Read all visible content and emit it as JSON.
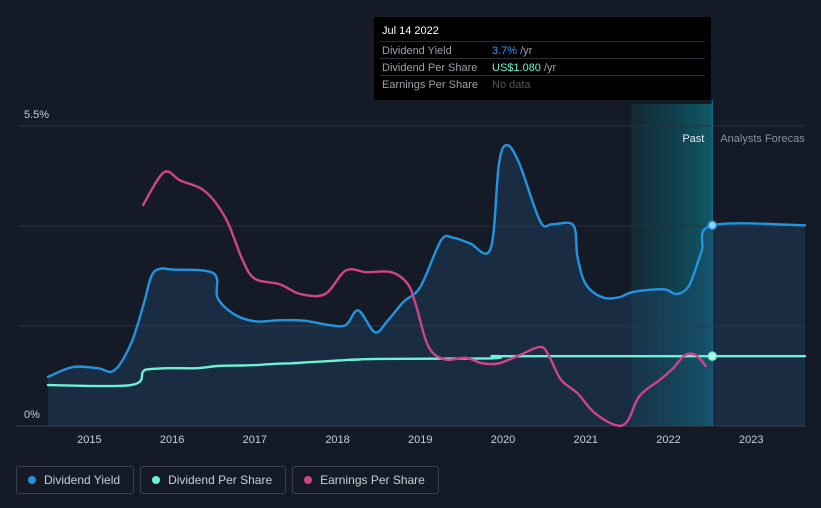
{
  "tooltip": {
    "date": "Jul 14 2022",
    "rows": [
      {
        "label": "Dividend Yield",
        "value": "3.7%",
        "unit": "/yr"
      },
      {
        "label": "Dividend Per Share",
        "value": "US$1.080",
        "unit": "/yr"
      },
      {
        "label": "Earnings Per Share",
        "value": "No data",
        "unit": ""
      }
    ]
  },
  "labels": {
    "past": "Past",
    "forecast": "Analysts Forecas"
  },
  "legend": [
    {
      "label": "Dividend Yield",
      "color": "#2394df"
    },
    {
      "label": "Dividend Per Share",
      "color": "#6ff2d4"
    },
    {
      "label": "Earnings Per Share",
      "color": "#d0448b"
    }
  ],
  "chart_data": {
    "type": "line",
    "ylim": [
      0,
      5.5
    ],
    "y_ticks": [
      "5.5%",
      "0%"
    ],
    "x_ticks": [
      "2015",
      "2016",
      "2017",
      "2018",
      "2019",
      "2020",
      "2021",
      "2022",
      "2023"
    ],
    "xlim": [
      2014.5,
      2023.65
    ],
    "forecast_start": 2021.55,
    "past_marker": 2022.53,
    "series": [
      {
        "name": "Dividend Yield",
        "color": "#2394df",
        "filled": true,
        "points": [
          [
            2014.5,
            0.9
          ],
          [
            2014.8,
            1.08
          ],
          [
            2015.1,
            1.06
          ],
          [
            2015.3,
            1.02
          ],
          [
            2015.5,
            1.5
          ],
          [
            2015.65,
            2.2
          ],
          [
            2015.75,
            2.75
          ],
          [
            2015.85,
            2.88
          ],
          [
            2016.0,
            2.87
          ],
          [
            2016.5,
            2.8
          ],
          [
            2016.55,
            2.35
          ],
          [
            2016.75,
            2.05
          ],
          [
            2017.0,
            1.92
          ],
          [
            2017.3,
            1.94
          ],
          [
            2017.6,
            1.93
          ],
          [
            2017.9,
            1.85
          ],
          [
            2018.1,
            1.85
          ],
          [
            2018.25,
            2.12
          ],
          [
            2018.45,
            1.72
          ],
          [
            2018.6,
            1.92
          ],
          [
            2018.8,
            2.28
          ],
          [
            2019.0,
            2.55
          ],
          [
            2019.25,
            3.4
          ],
          [
            2019.4,
            3.45
          ],
          [
            2019.6,
            3.35
          ],
          [
            2019.85,
            3.25
          ],
          [
            2019.95,
            4.8
          ],
          [
            2020.05,
            5.15
          ],
          [
            2020.2,
            4.8
          ],
          [
            2020.45,
            3.75
          ],
          [
            2020.6,
            3.7
          ],
          [
            2020.85,
            3.68
          ],
          [
            2020.9,
            3.1
          ],
          [
            2021.0,
            2.6
          ],
          [
            2021.2,
            2.36
          ],
          [
            2021.4,
            2.36
          ],
          [
            2021.55,
            2.45
          ],
          [
            2021.8,
            2.5
          ],
          [
            2021.97,
            2.5
          ],
          [
            2022.1,
            2.42
          ],
          [
            2022.25,
            2.58
          ],
          [
            2022.4,
            3.2
          ],
          [
            2022.53,
            3.68
          ],
          [
            2023.65,
            3.68
          ]
        ]
      },
      {
        "name": "Dividend Per Share",
        "color": "#6ff2d4",
        "filled": false,
        "points": [
          [
            2014.5,
            0.75
          ],
          [
            2015.5,
            0.75
          ],
          [
            2015.65,
            1.0
          ],
          [
            2015.72,
            1.04
          ],
          [
            2015.95,
            1.06
          ],
          [
            2016.3,
            1.06
          ],
          [
            2016.55,
            1.1
          ],
          [
            2016.85,
            1.11
          ],
          [
            2017.05,
            1.12
          ],
          [
            2017.25,
            1.14
          ],
          [
            2017.45,
            1.15
          ],
          [
            2017.65,
            1.17
          ],
          [
            2017.8,
            1.18
          ],
          [
            2018.0,
            1.2
          ],
          [
            2018.25,
            1.22
          ],
          [
            2018.5,
            1.23
          ],
          [
            2019.85,
            1.24
          ],
          [
            2019.95,
            1.28
          ],
          [
            2020.2,
            1.28
          ],
          [
            2023.65,
            1.28
          ]
        ]
      },
      {
        "name": "Earnings Per Share",
        "color": "#d0448b",
        "filled": false,
        "points": [
          [
            2015.65,
            4.05
          ],
          [
            2015.9,
            4.65
          ],
          [
            2016.1,
            4.5
          ],
          [
            2016.4,
            4.3
          ],
          [
            2016.65,
            3.8
          ],
          [
            2016.85,
            3.05
          ],
          [
            2017.0,
            2.7
          ],
          [
            2017.3,
            2.6
          ],
          [
            2017.55,
            2.42
          ],
          [
            2017.85,
            2.42
          ],
          [
            2018.1,
            2.85
          ],
          [
            2018.35,
            2.82
          ],
          [
            2018.65,
            2.82
          ],
          [
            2018.85,
            2.6
          ],
          [
            2018.95,
            2.2
          ],
          [
            2019.1,
            1.45
          ],
          [
            2019.3,
            1.22
          ],
          [
            2019.55,
            1.25
          ],
          [
            2019.75,
            1.15
          ],
          [
            2019.95,
            1.15
          ],
          [
            2020.2,
            1.3
          ],
          [
            2020.45,
            1.45
          ],
          [
            2020.55,
            1.3
          ],
          [
            2020.7,
            0.85
          ],
          [
            2020.9,
            0.6
          ],
          [
            2021.1,
            0.25
          ],
          [
            2021.35,
            0.02
          ],
          [
            2021.5,
            0.08
          ],
          [
            2021.65,
            0.55
          ],
          [
            2021.9,
            0.85
          ],
          [
            2022.05,
            1.05
          ],
          [
            2022.2,
            1.3
          ],
          [
            2022.33,
            1.3
          ],
          [
            2022.45,
            1.1
          ]
        ]
      }
    ]
  }
}
